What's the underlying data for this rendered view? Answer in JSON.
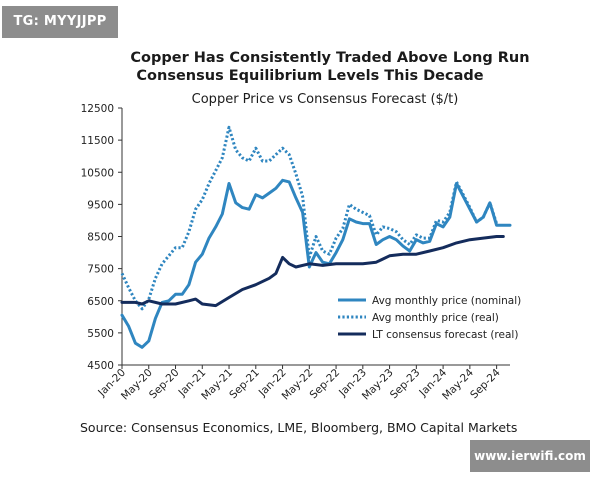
{
  "badge": "TG: MYYJJPP",
  "watermark": "www.ierwifi.com",
  "source": "Source: Consensus Economics, LME, Bloomberg, BMO Capital Markets",
  "chart_data": {
    "type": "line",
    "title_line1": "Copper Has Consistently Traded Above Long Run",
    "title_line2": "Consensus Equilibrium Levels This Decade",
    "subtitle": "Copper Price vs Consensus Forecast ($/t)",
    "ylim": [
      4500,
      12500
    ],
    "yticks": [
      4500,
      5500,
      6500,
      7500,
      8500,
      9500,
      10500,
      11500,
      12500
    ],
    "ytick_labels": [
      "4500",
      "5500",
      "6500",
      "7500",
      "8500",
      "9500",
      "10500",
      "11500",
      "12500"
    ],
    "x_tick_labels": [
      "Jan-20",
      "May-20",
      "Sep-20",
      "Jan-21",
      "May-21",
      "Sep-21",
      "Jan-22",
      "May-22",
      "Sep-22",
      "Jan-23",
      "May-23",
      "Sep-23",
      "Jan-24",
      "May-24",
      "Sep-24"
    ],
    "x_tick_months": [
      0,
      4,
      8,
      12,
      16,
      20,
      24,
      28,
      32,
      36,
      40,
      44,
      48,
      52,
      56
    ],
    "xlim_months": [
      0,
      58
    ],
    "grid": false,
    "legend_position": "bottom-right",
    "series": [
      {
        "name": "Avg monthly price (nominal)",
        "color": "#2f86c0",
        "style": "solid",
        "width": 3,
        "months": [
          0,
          1,
          2,
          3,
          4,
          5,
          6,
          7,
          8,
          9,
          10,
          11,
          12,
          13,
          14,
          15,
          16,
          17,
          18,
          19,
          20,
          21,
          22,
          23,
          24,
          25,
          26,
          27,
          28,
          29,
          30,
          31,
          32,
          33,
          34,
          35,
          36,
          37,
          38,
          39,
          40,
          41,
          42,
          43,
          44,
          45,
          46,
          47,
          48,
          49,
          50,
          51,
          52,
          53,
          54,
          55,
          56,
          57,
          58
        ],
        "values": [
          6050,
          5700,
          5180,
          5050,
          5250,
          5950,
          6450,
          6500,
          6700,
          6700,
          7000,
          7700,
          7950,
          8450,
          8800,
          9200,
          10150,
          9550,
          9400,
          9350,
          9800,
          9700,
          9850,
          10000,
          10250,
          10200,
          9700,
          9250,
          7550,
          8000,
          7700,
          7650,
          8000,
          8400,
          9050,
          8950,
          8900,
          8900,
          8250,
          8400,
          8500,
          8400,
          8200,
          8050,
          8400,
          8300,
          8350,
          8900,
          8800,
          9100,
          10150,
          9750,
          9350,
          8950,
          9100,
          9550,
          8850,
          8850,
          8850
        ]
      },
      {
        "name": "Avg monthly price (real)",
        "color": "#2f86c0",
        "style": "dotted",
        "width": 3,
        "months": [
          0,
          1,
          2,
          3,
          4,
          5,
          6,
          7,
          8,
          9,
          10,
          11,
          12,
          13,
          14,
          15,
          16,
          17,
          18,
          19,
          20,
          21,
          22,
          23,
          24,
          25,
          26,
          27,
          28,
          29,
          30,
          31,
          32,
          33,
          34,
          35,
          36,
          37,
          38,
          39,
          40,
          41,
          42,
          43,
          44,
          45,
          46,
          47,
          48,
          49,
          50,
          51,
          52,
          53,
          54,
          55,
          56
        ],
        "values": [
          7350,
          6900,
          6500,
          6250,
          6550,
          7200,
          7650,
          7900,
          8150,
          8150,
          8650,
          9350,
          9650,
          10150,
          10550,
          10950,
          11900,
          11200,
          10950,
          10850,
          11250,
          10850,
          10850,
          11050,
          11250,
          11050,
          10450,
          9750,
          7850,
          8500,
          8050,
          7950,
          8450,
          8750,
          9500,
          9350,
          9250,
          9150,
          8550,
          8800,
          8750,
          8650,
          8400,
          8250,
          8550,
          8450,
          8450,
          9000,
          8950,
          9250,
          10200,
          9800,
          9400,
          8950,
          9100,
          9550,
          8900
        ]
      },
      {
        "name": "LT consensus forecast (real)",
        "color": "#142c5c",
        "style": "solid",
        "width": 3,
        "months": [
          0,
          2,
          3,
          4,
          6,
          8,
          10,
          11,
          12,
          14,
          16,
          18,
          20,
          22,
          23,
          24,
          25,
          26,
          28,
          30,
          32,
          34,
          36,
          38,
          40,
          42,
          44,
          46,
          48,
          50,
          52,
          54,
          56,
          57
        ],
        "values": [
          6450,
          6450,
          6400,
          6500,
          6400,
          6400,
          6500,
          6550,
          6400,
          6350,
          6600,
          6850,
          7000,
          7200,
          7350,
          7850,
          7650,
          7550,
          7650,
          7600,
          7650,
          7650,
          7650,
          7700,
          7900,
          7950,
          7950,
          8050,
          8150,
          8300,
          8400,
          8450,
          8500,
          8500
        ]
      }
    ]
  }
}
